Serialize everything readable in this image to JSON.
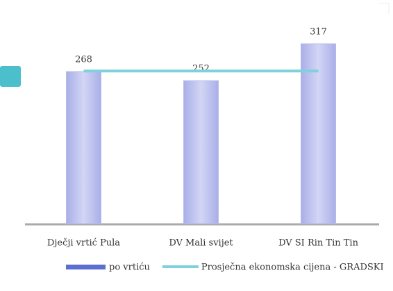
{
  "chart_data": {
    "type": "bar",
    "categories": [
      "Dječji vrtić Pula",
      "DV Mali svijet",
      "DV SI Rin Tin Tin"
    ],
    "series": [
      {
        "name": "po vrtiću",
        "type": "bar",
        "color": "#c6c9f0",
        "values": [
          268,
          252,
          317
        ]
      },
      {
        "name": "Prosječna ekonomska cijena - GRADSKI",
        "type": "line",
        "color": "#7fd1dc",
        "values": [
          269,
          269,
          269
        ]
      }
    ]
  }
}
